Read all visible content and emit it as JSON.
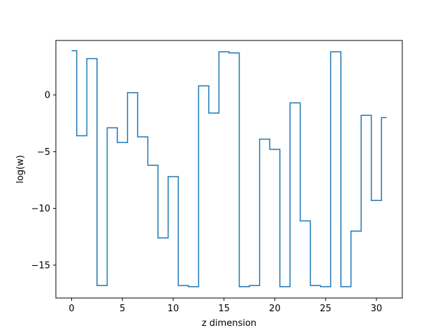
{
  "chart_data": {
    "type": "line",
    "drawstyle": "steps-mid",
    "title": "",
    "xlabel": "z dimension",
    "ylabel": "log(w)",
    "xlim": [
      -1.55,
      32.55
    ],
    "ylim": [
      -17.9,
      4.8
    ],
    "xticks": [
      0,
      5,
      10,
      15,
      20,
      25,
      30
    ],
    "yticks": [
      -15,
      -10,
      -5,
      0
    ],
    "ytick_labels": [
      "−15",
      "−10",
      "−5",
      "0"
    ],
    "grid": false,
    "line_color": "#1f77b4",
    "series": [
      {
        "x": [
          0,
          1,
          2,
          3,
          4,
          5,
          6,
          7,
          8,
          9,
          10,
          11,
          12,
          13,
          14,
          15,
          16,
          17,
          18,
          19,
          20,
          21,
          22,
          23,
          24,
          25,
          26,
          27,
          28,
          29,
          30,
          31
        ],
        "values": [
          3.9,
          -3.6,
          3.2,
          -16.8,
          -2.9,
          -4.2,
          0.2,
          -3.7,
          -6.2,
          -12.6,
          -7.2,
          -16.8,
          -16.9,
          0.8,
          -1.6,
          3.8,
          3.7,
          -16.9,
          -16.8,
          -3.9,
          -4.8,
          -16.9,
          -0.7,
          -11.1,
          -16.8,
          -16.9,
          3.8,
          -16.9,
          -12.0,
          -1.8,
          -9.3,
          -2.0
        ]
      }
    ]
  }
}
